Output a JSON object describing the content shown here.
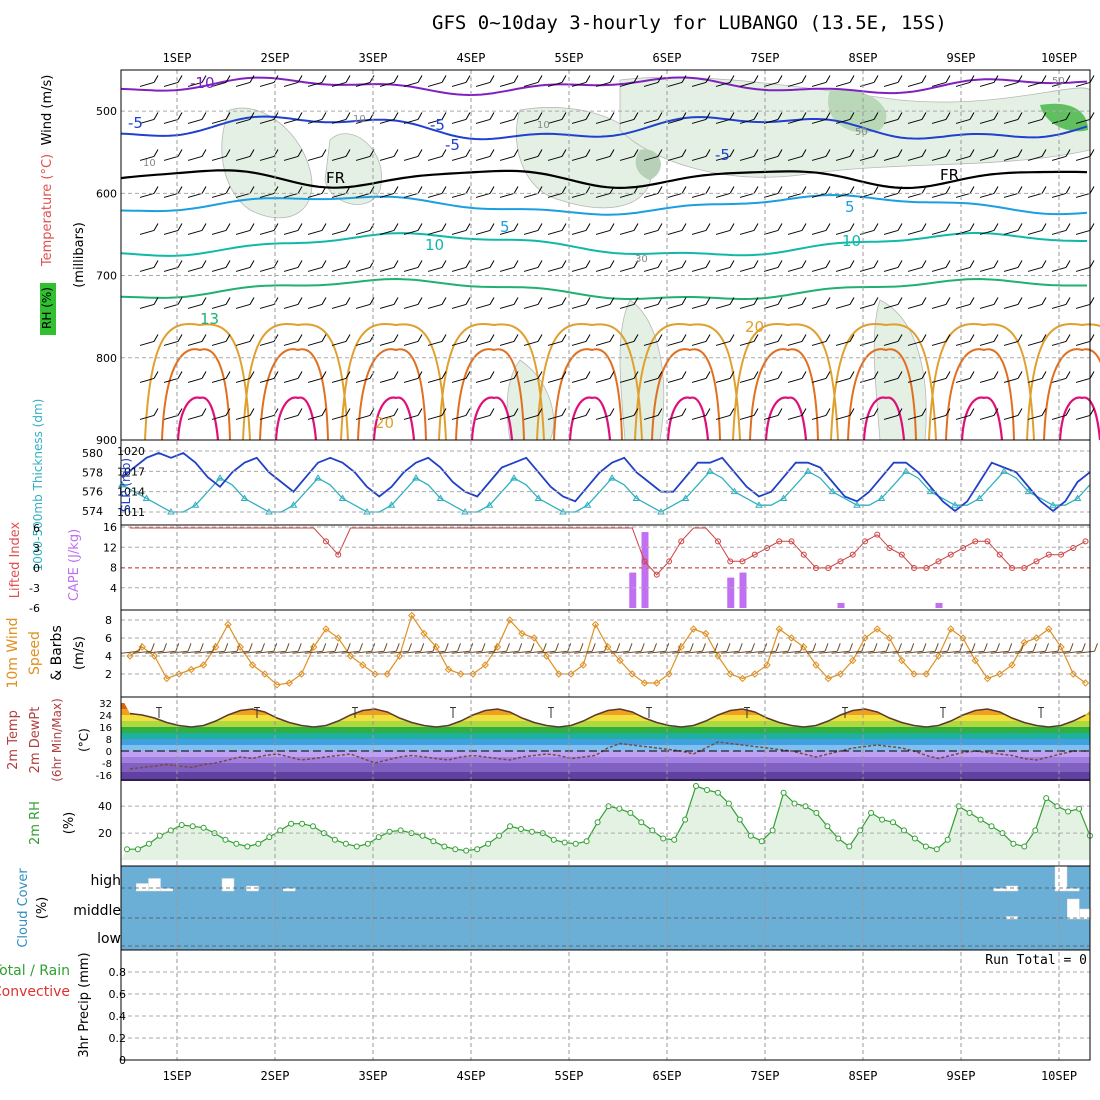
{
  "title": "GFS 0~10day 3-hourly for LUBANGO (13.5E, 15S)",
  "days": [
    "1SEP",
    "2SEP",
    "3SEP",
    "4SEP",
    "5SEP",
    "6SEP",
    "7SEP",
    "8SEP",
    "9SEP",
    "10SEP"
  ],
  "colors": {
    "temp_cold": "#8020c0",
    "temp_blue": "#2040d0",
    "temp_sky": "#1a9fe0",
    "temp_teal": "#10b8a8",
    "temp_green": "#20b070",
    "temp_gold": "#e0a030",
    "temp_orange": "#e07020",
    "temp_magenta": "#e0107a",
    "thickness": "#2040c8",
    "slp": "#30b0c0",
    "cape": "#c070f0",
    "li": "#d04040",
    "wind_speed": "#e09020",
    "rh": "#30a030",
    "cloud_bg": "#6baed6",
    "precip_bg": "#ffffff"
  },
  "chart_data": [
    {
      "type": "contour",
      "panel": "upper-air",
      "ylabel_wind": "Wind (m/s)",
      "ylabel_temp": "Temperature (°C)",
      "ylabel_rh": "RH (%)",
      "ylabel_p": "(millibars)",
      "yticks": [
        500,
        600,
        700,
        800,
        900
      ],
      "ylim": [
        450,
        900
      ],
      "isotherm_labels": [
        "-10",
        "-5",
        "-5",
        "-5",
        "-5",
        "FR",
        "FR",
        "5",
        "5",
        "10",
        "10",
        "13",
        "20",
        "20"
      ],
      "rh_labels": [
        "10",
        "10",
        "10",
        "50",
        "50",
        "30"
      ]
    },
    {
      "type": "line",
      "panel": "thickness-slp",
      "ylabel_left": "1000-500mb Thickness (dm)",
      "ylabel_right": "SLP (mb)",
      "yticks_left": [
        574,
        576,
        578,
        580
      ],
      "yticks_right": [
        1011,
        1014,
        1017,
        1020
      ],
      "x": [
        0,
        3,
        6,
        9,
        12,
        15,
        18,
        21,
        24,
        27,
        30,
        33,
        36,
        39,
        42,
        45,
        48,
        51,
        54,
        57,
        60,
        63,
        66,
        69,
        72,
        75,
        78,
        81,
        84,
        87,
        90,
        93,
        96,
        99,
        102,
        105,
        108,
        111,
        114,
        117,
        120,
        123,
        126,
        129,
        132,
        135,
        138,
        141,
        144,
        147,
        150,
        153,
        156,
        159,
        162,
        165,
        168,
        171,
        174,
        177,
        180,
        183,
        186,
        189,
        192,
        195,
        198,
        201,
        204,
        207,
        210,
        213,
        216,
        219,
        222,
        225,
        228,
        231,
        234,
        237,
        240
      ],
      "series": [
        {
          "name": "SLP",
          "axis": "right",
          "values": [
            1015,
            1014,
            1013,
            1012,
            1011,
            1011,
            1012,
            1014,
            1016,
            1015,
            1013,
            1012,
            1011,
            1011,
            1012,
            1014,
            1016,
            1015,
            1013,
            1012,
            1011,
            1011,
            1012,
            1014,
            1016,
            1015,
            1013,
            1012,
            1011,
            1011,
            1012,
            1014,
            1016,
            1015,
            1013,
            1012,
            1011,
            1011,
            1012,
            1014,
            1016,
            1015,
            1013,
            1012,
            1011,
            1012,
            1013,
            1015,
            1017,
            1016,
            1014,
            1013,
            1012,
            1012,
            1013,
            1015,
            1017,
            1016,
            1014,
            1013,
            1012,
            1012,
            1013,
            1015,
            1017,
            1016,
            1014,
            1013,
            1012,
            1012,
            1013,
            1015,
            1017,
            1016,
            1014,
            1013,
            1012,
            1012,
            1013,
            1015,
            1016
          ]
        },
        {
          "name": "Thickness",
          "axis": "left",
          "values": [
            577.5,
            578.5,
            579.5,
            580,
            579.5,
            580,
            579,
            577.5,
            576.5,
            578,
            579,
            579.5,
            578,
            577,
            576,
            577.5,
            579,
            579.5,
            579,
            578,
            576.5,
            575.5,
            576.5,
            578,
            579,
            579.5,
            578.5,
            577,
            576,
            575.5,
            577,
            578.5,
            579,
            579.5,
            578,
            576.5,
            575.5,
            575,
            576.5,
            578,
            579,
            579.5,
            578,
            577,
            576,
            576,
            577.5,
            579,
            579,
            579.5,
            578,
            576.5,
            575.5,
            576,
            577.5,
            579,
            579,
            578.5,
            577,
            575.5,
            575,
            576,
            577.5,
            579,
            579,
            578,
            576.5,
            575,
            574,
            575,
            577,
            579,
            578.5,
            578,
            576.5,
            575,
            574,
            575,
            577,
            578,
            578.5
          ]
        }
      ]
    },
    {
      "type": "bar+line",
      "panel": "cape-li",
      "ylabel_left": "Lifted Index",
      "ylabel_right": "CAPE (J/kg)",
      "yticks_li": [
        -6,
        -3,
        0,
        3,
        6
      ],
      "yticks_cape": [
        4,
        8,
        12,
        16
      ],
      "cape_bars": [
        {
          "t": 123,
          "v": 7
        },
        {
          "t": 126,
          "v": 15
        },
        {
          "t": 147,
          "v": 6
        },
        {
          "t": 150,
          "v": 7
        },
        {
          "t": 174,
          "v": 1
        },
        {
          "t": 198,
          "v": 1
        }
      ],
      "li_x": [
        0,
        3,
        6,
        9,
        12,
        15,
        18,
        21,
        24,
        27,
        30,
        33,
        36,
        39,
        42,
        45,
        48,
        51,
        54,
        57,
        60,
        63,
        66,
        69,
        72,
        75,
        78,
        81,
        84,
        87,
        90,
        93,
        96,
        99,
        102,
        105,
        108,
        111,
        114,
        117,
        120,
        123,
        126,
        129,
        132,
        135,
        138,
        141,
        144,
        147,
        150,
        153,
        156,
        159,
        162,
        165,
        168,
        171,
        174,
        177,
        180,
        183,
        186,
        189,
        192,
        195,
        198,
        201,
        204,
        207,
        210,
        213,
        216,
        219,
        222,
        225,
        228,
        231,
        234,
        237,
        240
      ],
      "li_values": [
        6,
        6,
        6,
        6,
        6,
        6,
        6,
        6,
        6,
        6,
        6,
        6,
        6,
        6,
        6,
        6,
        4,
        2,
        6,
        6,
        6,
        6,
        6,
        6,
        6,
        6,
        6,
        6,
        6,
        6,
        6,
        6,
        6,
        6,
        6,
        6,
        6,
        6,
        6,
        6,
        6,
        6,
        1,
        -1,
        1,
        4,
        6,
        6,
        4,
        1,
        1,
        2,
        3,
        4,
        4,
        2,
        0,
        0,
        1,
        2,
        4,
        5,
        3,
        2,
        0,
        0,
        1,
        2,
        3,
        4,
        4,
        2,
        0,
        0,
        1,
        2,
        2,
        3,
        4,
        4,
        4
      ]
    },
    {
      "type": "line",
      "panel": "10m-wind",
      "ylabel": "10m Wind Speed & Barbs (m/s)",
      "yticks": [
        2,
        4,
        6,
        8
      ],
      "values": [
        4,
        5,
        4,
        1.5,
        2,
        2.5,
        3,
        5,
        7.5,
        5,
        3,
        2,
        0.8,
        1,
        2,
        5,
        7,
        6,
        4,
        3,
        2,
        2,
        4,
        8.5,
        6.5,
        5,
        2.5,
        2,
        2,
        3,
        5,
        8,
        6.5,
        6,
        4,
        2,
        2,
        3,
        7.5,
        5,
        3.5,
        2,
        1,
        1,
        2,
        5,
        7,
        6.5,
        4,
        2,
        1.5,
        2,
        3,
        7,
        6,
        5,
        3,
        1.5,
        2,
        3.5,
        6,
        7,
        6,
        3.5,
        2,
        2,
        4,
        7,
        6,
        3.5,
        1.5,
        2,
        3,
        5.5,
        6,
        7,
        5,
        2,
        1,
        3,
        5
      ]
    },
    {
      "type": "area+line",
      "panel": "2m-temp",
      "ylabel": "2m Temp 2m DewPt (6hr Min/Max) (°C)",
      "yticks": [
        32,
        24,
        16,
        8,
        0,
        -8,
        -16
      ],
      "temp": [
        25,
        24,
        22,
        19,
        17,
        16,
        17,
        20,
        24,
        27,
        28,
        26,
        22,
        19,
        17,
        16,
        17,
        20,
        24,
        27,
        28,
        26,
        22,
        19,
        17,
        16,
        17,
        20,
        24,
        27,
        28,
        26,
        22,
        19,
        17,
        16,
        17,
        20,
        24,
        27,
        28,
        26,
        22,
        19,
        17,
        16,
        17,
        20,
        24,
        27,
        28,
        26,
        22,
        19,
        17,
        16,
        17,
        20,
        24,
        27,
        28,
        26,
        22,
        19,
        17,
        16,
        17,
        20,
        24,
        27,
        28,
        26,
        22,
        19,
        17,
        16,
        17,
        20,
        24,
        27,
        18
      ],
      "dewpt": [
        -12,
        -11,
        -10,
        -9,
        -10,
        -11,
        -9,
        -8,
        -6,
        -4,
        -5,
        -3,
        -2,
        -4,
        -6,
        -5,
        -4,
        -3,
        -2,
        -5,
        -8,
        -6,
        -4,
        -3,
        -4,
        -5,
        -6,
        -4,
        -3,
        -4,
        -5,
        -6,
        -4,
        -3,
        -2,
        -3,
        -5,
        -4,
        -3,
        2,
        5,
        4,
        3,
        2,
        1,
        0,
        -2,
        2,
        6,
        5,
        4,
        3,
        2,
        1,
        0,
        -2,
        -4,
        -2,
        0,
        2,
        3,
        4,
        3,
        2,
        0,
        -3,
        -5,
        -3,
        -1,
        0,
        -1,
        -2,
        -3,
        -5,
        -6,
        -4,
        -2,
        0,
        0,
        2,
        -8
      ]
    },
    {
      "type": "area",
      "panel": "2m-rh",
      "ylabel": "2m RH (%)",
      "yticks": [
        20,
        40
      ],
      "values": [
        8,
        8,
        12,
        18,
        22,
        26,
        25,
        24,
        20,
        15,
        12,
        10,
        12,
        17,
        22,
        27,
        27,
        25,
        20,
        15,
        12,
        10,
        12,
        17,
        21,
        22,
        20,
        18,
        14,
        10,
        8,
        7,
        8,
        12,
        18,
        25,
        23,
        21,
        20,
        15,
        13,
        12,
        14,
        28,
        40,
        38,
        35,
        28,
        22,
        16,
        15,
        30,
        55,
        52,
        50,
        42,
        30,
        18,
        14,
        22,
        50,
        42,
        40,
        35,
        25,
        16,
        10,
        22,
        35,
        30,
        28,
        22,
        16,
        10,
        8,
        15,
        40,
        35,
        30,
        25,
        20,
        12,
        10,
        22,
        46,
        40,
        36,
        38,
        18
      ]
    },
    {
      "type": "bar",
      "panel": "cloud-cover",
      "ylabel": "Cloud Cover (%)",
      "levels": [
        "high",
        "middle",
        "low"
      ],
      "high_bars": [
        {
          "t": 3,
          "v": 15
        },
        {
          "t": 6,
          "v": 25
        },
        {
          "t": 9,
          "v": 5
        },
        {
          "t": 24,
          "v": 25
        },
        {
          "t": 30,
          "v": 10
        },
        {
          "t": 39,
          "v": 5
        },
        {
          "t": 213,
          "v": 5
        },
        {
          "t": 216,
          "v": 10
        },
        {
          "t": 228,
          "v": 50
        },
        {
          "t": 231,
          "v": 5
        }
      ],
      "middle_bars": [
        {
          "t": 231,
          "v": 40
        },
        {
          "t": 234,
          "v": 20
        }
      ],
      "low_bars": [
        {
          "t": 216,
          "v": 5
        }
      ]
    },
    {
      "type": "bar",
      "panel": "precip",
      "ylabel_top": "Total / Rain",
      "ylabel_mid": "Convective",
      "ylabel": "3hr Precip (mm)",
      "yticks": [
        0,
        0.2,
        0.4,
        0.6,
        0.8
      ],
      "ylim": [
        0,
        0.95
      ],
      "values": [],
      "run_total_label": "Run Total = 0"
    }
  ]
}
